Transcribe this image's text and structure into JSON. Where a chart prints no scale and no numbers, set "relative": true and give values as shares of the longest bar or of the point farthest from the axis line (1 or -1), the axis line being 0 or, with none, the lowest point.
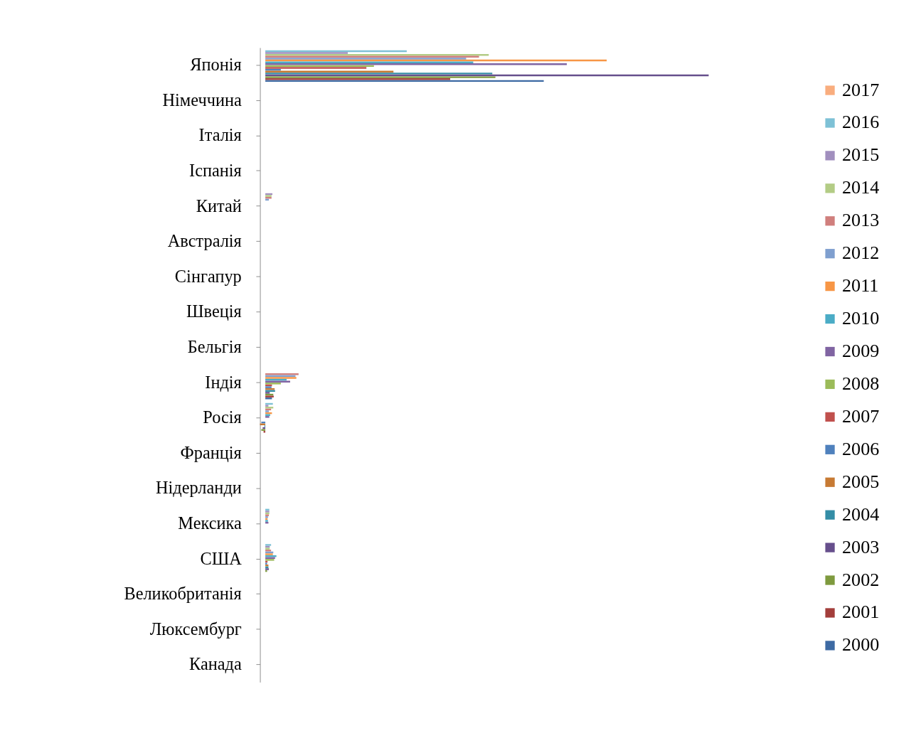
{
  "chart_data": {
    "type": "bar",
    "orientation": "horizontal",
    "relative": true,
    "grid": false,
    "legend": "right",
    "categories": [
      "Японія",
      "Німеччина",
      "Італія",
      "Іспанія",
      "Китай",
      "Австралія",
      "Сінгапур",
      "Швеція",
      "Бельгія",
      "Індія",
      "Росія",
      "Франція",
      "Нідерланди",
      "Мексика",
      "США",
      "Великобританія",
      "Люксембург",
      "Канада"
    ],
    "series": [
      {
        "name": "2017",
        "color": "#f9ad7e",
        "values": [
          null,
          null,
          null,
          null,
          null,
          null,
          null,
          null,
          null,
          null,
          null,
          null,
          null,
          null,
          null,
          null,
          null,
          null
        ]
      },
      {
        "name": "2016",
        "color": "#7ec1d6",
        "values": [
          0.319,
          null,
          null,
          null,
          null,
          null,
          null,
          null,
          null,
          null,
          0.017,
          null,
          null,
          0.009,
          0.013,
          null,
          null,
          null
        ]
      },
      {
        "name": "2015",
        "color": "#a18fbe",
        "values": [
          0.186,
          null,
          null,
          null,
          0.016,
          null,
          null,
          null,
          null,
          null,
          0.007,
          null,
          null,
          0.009,
          0.01,
          null,
          null,
          null
        ]
      },
      {
        "name": "2014",
        "color": "#b3cc85",
        "values": [
          0.504,
          null,
          null,
          null,
          0.014,
          null,
          null,
          null,
          null,
          null,
          0.018,
          null,
          null,
          0.009,
          0.01,
          null,
          null,
          null
        ]
      },
      {
        "name": "2013",
        "color": "#d07f7d",
        "values": [
          0.482,
          null,
          null,
          null,
          0.014,
          null,
          null,
          null,
          null,
          0.075,
          0.013,
          null,
          null,
          0.008,
          0.013,
          null,
          null,
          null
        ]
      },
      {
        "name": "2012",
        "color": "#7f9fcf",
        "values": [
          0.453,
          null,
          null,
          null,
          0.008,
          null,
          null,
          null,
          null,
          0.068,
          0.008,
          null,
          null,
          0.006,
          0.018,
          null,
          null,
          null
        ]
      },
      {
        "name": "2011",
        "color": "#f79646",
        "values": [
          0.77,
          null,
          null,
          null,
          null,
          null,
          null,
          null,
          null,
          0.07,
          0.015,
          null,
          null,
          0.005,
          0.017,
          null,
          null,
          null
        ]
      },
      {
        "name": "2010",
        "color": "#4bacc6",
        "values": [
          0.469,
          null,
          null,
          null,
          null,
          null,
          null,
          null,
          null,
          0.048,
          0.011,
          null,
          null,
          0.006,
          0.025,
          null,
          null,
          null
        ]
      },
      {
        "name": "2009",
        "color": "#8064a2",
        "values": [
          0.68,
          null,
          null,
          null,
          null,
          null,
          null,
          null,
          null,
          0.056,
          0.009,
          null,
          null,
          0.007,
          0.022,
          null,
          null,
          null
        ]
      },
      {
        "name": "2008",
        "color": "#9bbb59",
        "values": [
          0.245,
          null,
          null,
          null,
          null,
          null,
          null,
          null,
          null,
          0.035,
          null,
          null,
          null,
          null,
          0.02,
          null,
          null,
          null
        ]
      },
      {
        "name": "2007",
        "color": "#c0504d",
        "values": [
          0.228,
          null,
          null,
          null,
          null,
          null,
          null,
          null,
          null,
          0.015,
          null,
          null,
          null,
          null,
          0.005,
          null,
          null,
          null
        ]
      },
      {
        "name": "2006",
        "color": "#4f81bd",
        "values": [
          0.035,
          null,
          null,
          null,
          null,
          null,
          null,
          null,
          null,
          0.014,
          -0.009,
          null,
          null,
          null,
          0.004,
          null,
          null,
          null
        ]
      },
      {
        "name": "2005",
        "color": "#c77a33",
        "values": [
          0.289,
          null,
          null,
          null,
          null,
          null,
          null,
          null,
          null,
          0.021,
          -0.012,
          null,
          null,
          null,
          0.007,
          null,
          null,
          null
        ]
      },
      {
        "name": "2004",
        "color": "#348da6",
        "values": [
          0.512,
          null,
          null,
          null,
          null,
          null,
          null,
          null,
          null,
          0.022,
          -0.002,
          null,
          null,
          null,
          0.007,
          null,
          null,
          null
        ]
      },
      {
        "name": "2003",
        "color": "#664f8c",
        "values": [
          1,
          null,
          null,
          null,
          null,
          null,
          null,
          null,
          null,
          0.01,
          -0.006,
          null,
          null,
          null,
          0.008,
          null,
          null,
          null
        ]
      },
      {
        "name": "2002",
        "color": "#7e9a3e",
        "values": [
          0.519,
          null,
          null,
          null,
          null,
          null,
          null,
          null,
          null,
          0.018,
          -0.009,
          null,
          null,
          null,
          0.004,
          null,
          null,
          null
        ]
      },
      {
        "name": "2001",
        "color": "#a33e3b",
        "values": [
          0.417,
          null,
          null,
          null,
          null,
          null,
          null,
          null,
          null,
          0.019,
          -0.004,
          null,
          null,
          null,
          null,
          null,
          null,
          null
        ]
      },
      {
        "name": "2000",
        "color": "#3d6aa3",
        "values": [
          0.628,
          null,
          null,
          null,
          null,
          null,
          null,
          null,
          null,
          0.015,
          null,
          null,
          null,
          null,
          null,
          null,
          null,
          null
        ]
      }
    ]
  }
}
